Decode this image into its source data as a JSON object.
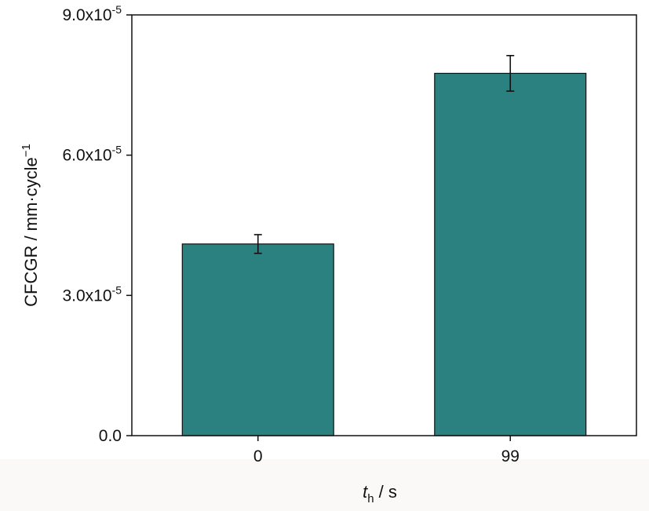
{
  "chart_data": {
    "type": "bar",
    "title": "",
    "categories": [
      "0",
      "99"
    ],
    "values": [
      4.1e-05,
      7.75e-05
    ],
    "errors": [
      2e-06,
      3.8e-06
    ],
    "ylim": [
      0,
      9e-05
    ],
    "y_ticks": [
      {
        "value": 0,
        "mantissa": "0.0",
        "exp": ""
      },
      {
        "value": 3e-05,
        "mantissa": "3.0x10",
        "exp": "-5"
      },
      {
        "value": 6e-05,
        "mantissa": "6.0x10",
        "exp": "-5"
      },
      {
        "value": 9e-05,
        "mantissa": "9.0x10",
        "exp": "-5"
      }
    ],
    "xlabel": {
      "main": "t",
      "sub": "h",
      "rest": " / s"
    },
    "ylabel": {
      "main": "CFCGR / mm·cycle",
      "sup": "−1"
    },
    "bar_color": "#2a817f",
    "grid": false,
    "legend": "none"
  }
}
